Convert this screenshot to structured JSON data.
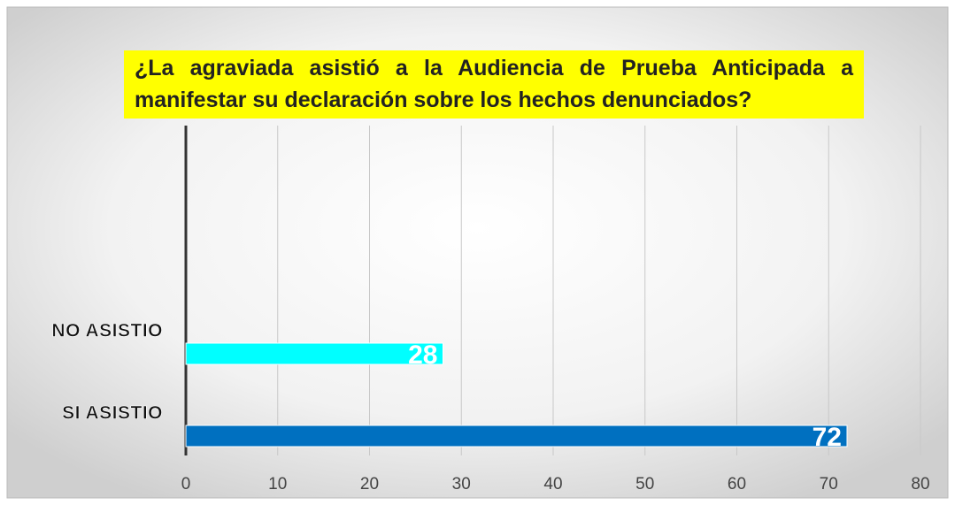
{
  "chart_data": {
    "type": "bar",
    "orientation": "horizontal",
    "title": "¿La agraviada asistió a la Audiencia de Prueba Anticipada a manifestar su declaración sobre los hechos denunciados?",
    "categories": [
      "NO ASISTIO",
      "SI ASISTIO"
    ],
    "values": [
      28,
      72
    ],
    "colors": [
      "#00ffff",
      "#0070c0"
    ],
    "xlim": [
      0,
      80
    ],
    "xticks": [
      0,
      10,
      20,
      30,
      40,
      50,
      60,
      70,
      80
    ],
    "grid": true
  }
}
